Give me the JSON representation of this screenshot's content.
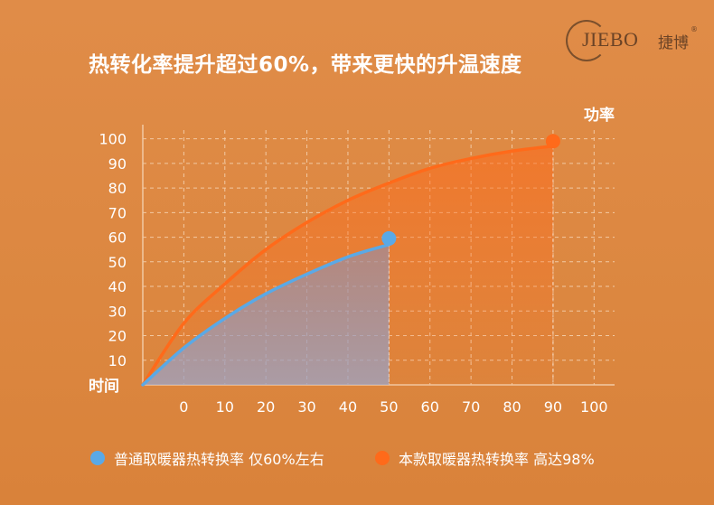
{
  "headline": "热转化率提升超过60%，带来更快的升温速度",
  "logo": {
    "word": "JIEBO",
    "cn": "捷博",
    "mark": "®"
  },
  "colors": {
    "background": "#dd8942",
    "grid": "#f2c9a3",
    "ordinary": "#5aa9e6",
    "featured": "#ff6a1a",
    "text": "#ffffff"
  },
  "chart_data": {
    "type": "area",
    "xlabel": "时间",
    "ylabel": "功率",
    "x_ticks": [
      0,
      10,
      20,
      30,
      40,
      50,
      60,
      70,
      80,
      90,
      100
    ],
    "y_ticks": [
      10,
      20,
      30,
      40,
      50,
      60,
      70,
      80,
      90,
      100
    ],
    "xlim": [
      -10,
      105
    ],
    "ylim": [
      0,
      105
    ],
    "grid": true,
    "series": [
      {
        "name": "本款取暖器热转换率 高达98%",
        "color": "#ff6a1a",
        "x": [
          -10,
          0,
          10,
          20,
          30,
          40,
          50,
          60,
          70,
          80,
          90
        ],
        "y": [
          0,
          25,
          41,
          55,
          66,
          75,
          82,
          88,
          92,
          95,
          97
        ],
        "endpoint": [
          90,
          99
        ]
      },
      {
        "name": "普通取暖器热转换率 仅60%左右",
        "color": "#5aa9e6",
        "x": [
          -10,
          0,
          10,
          20,
          30,
          40,
          50
        ],
        "y": [
          0,
          15,
          27,
          37,
          45,
          52,
          57
        ],
        "endpoint": [
          50,
          59.5
        ]
      }
    ]
  },
  "legend": {
    "ordinary": "普通取暖器热转换率 仅60%左右",
    "featured": "本款取暖器热转换率 高达98%"
  }
}
